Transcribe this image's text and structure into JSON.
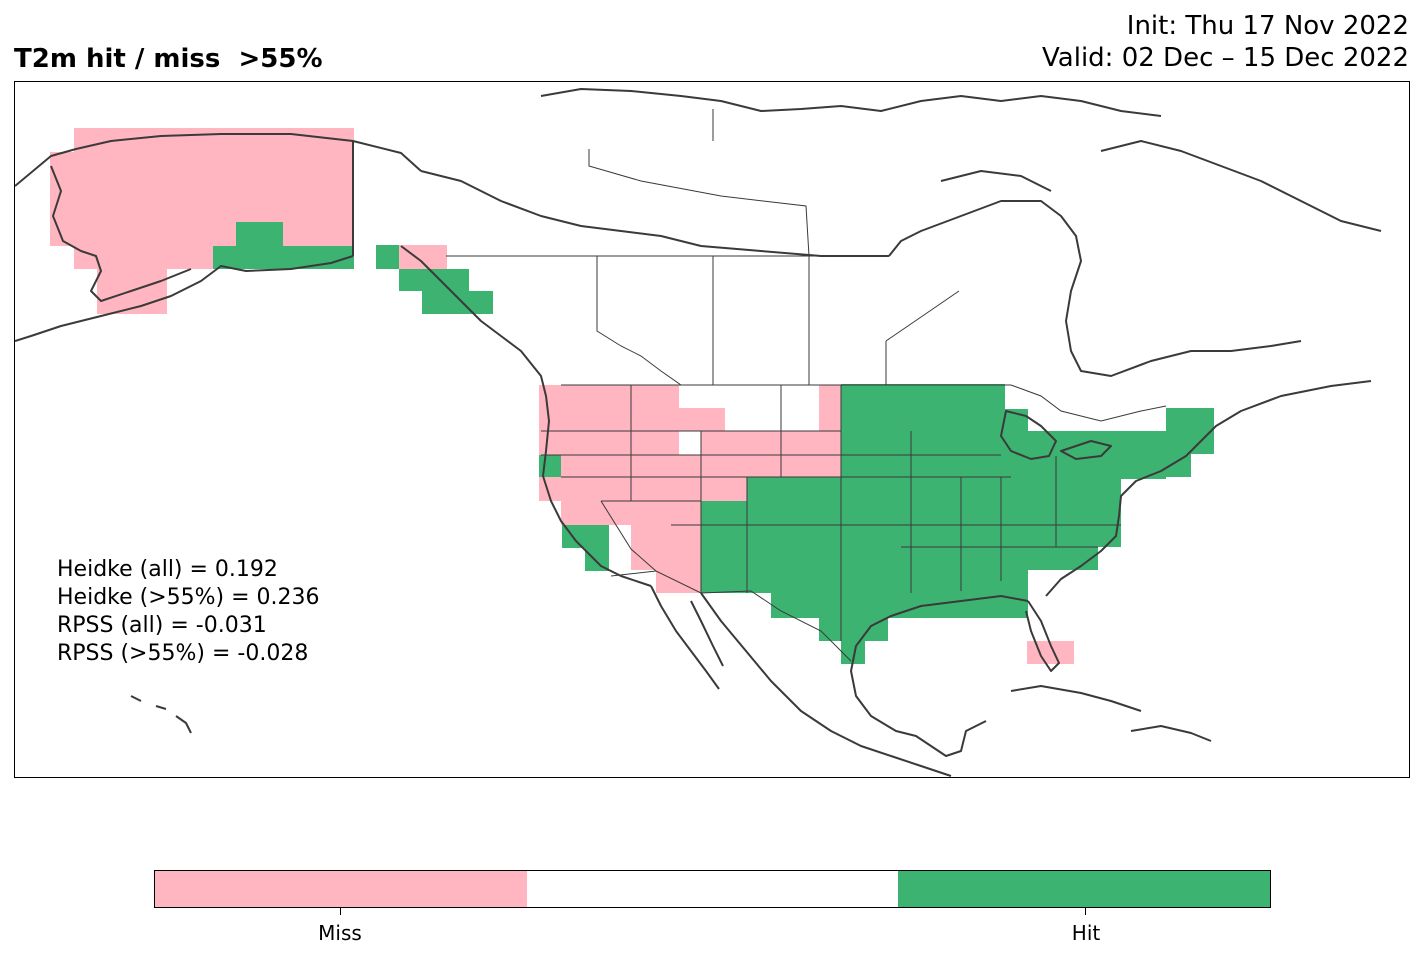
{
  "header": {
    "title": "T2m hit / miss  >55%",
    "init": "Init: Thu 17 Nov 2022",
    "valid": "Valid: 02 Dec – 15 Dec 2022"
  },
  "scores": [
    "Heidke (all) = 0.192",
    "Heidke (>55%) = 0.236",
    "RPSS (all) = -0.031",
    "RPSS (>55%) = -0.028"
  ],
  "colorbar": {
    "categories": [
      "Miss",
      "",
      "Hit"
    ],
    "colors": [
      "#ffb6c1",
      "#ffffff",
      "#3cb371"
    ],
    "tick_labels": [
      "Miss",
      "Hit"
    ]
  },
  "map_regions": {
    "miss": [
      "Alaska (mainland)",
      "Southeast Alaska (north)",
      "Pacific Northwest",
      "Northern Rockies",
      "Great Basin",
      "Arizona / New Mexico",
      "South Florida"
    ],
    "hit": [
      "South-central Alaska coast",
      "Alaska panhandle",
      "Great Plains",
      "Midwest",
      "Texas / Gulf Coast",
      "Southeast",
      "Northeast"
    ]
  }
}
